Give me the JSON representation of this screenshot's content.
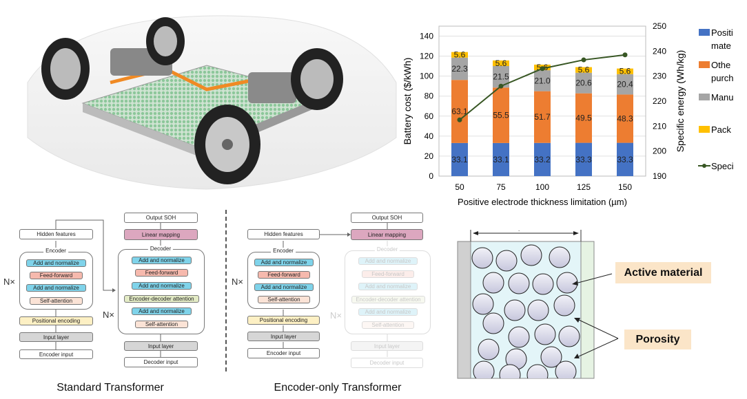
{
  "chart_data": {
    "type": "bar",
    "stacked": true,
    "categories": [
      "50",
      "75",
      "100",
      "125",
      "150"
    ],
    "series": [
      {
        "name": "Positi mate",
        "legend_lines": [
          "Positi",
          "mate"
        ],
        "color": "#4472c4",
        "values": [
          33.1,
          33.1,
          33.2,
          33.3,
          33.3
        ]
      },
      {
        "name": "Othe purch",
        "legend_lines": [
          "Othe",
          "purch"
        ],
        "color": "#ed7d31",
        "values": [
          63.1,
          55.5,
          51.7,
          49.5,
          48.3
        ]
      },
      {
        "name": "Manu",
        "legend_lines": [
          "Manu"
        ],
        "color": "#a5a5a5",
        "values": [
          22.3,
          21.5,
          21.0,
          20.6,
          20.4
        ]
      },
      {
        "name": "Pack",
        "legend_lines": [
          "Pack"
        ],
        "color": "#ffc000",
        "values": [
          5.6,
          5.6,
          5.6,
          5.6,
          5.6
        ]
      }
    ],
    "line_series": {
      "name": "Speci",
      "legend_lines": [
        "Speci"
      ],
      "color": "#375623",
      "axis": "right",
      "values": [
        212.5,
        226,
        233,
        236.5,
        238.5
      ]
    },
    "xlabel": "Positive electrode thickness limitation (µm)",
    "ylabel": "Battery cost ($/kWh)",
    "y2label": "Specific energy (Wh/kg)",
    "ylim": [
      0,
      150
    ],
    "yticks": [
      0,
      20,
      40,
      60,
      80,
      100,
      120,
      140
    ],
    "y2lim": [
      190,
      250
    ],
    "y2ticks": [
      190,
      200,
      210,
      220,
      230,
      240,
      250
    ],
    "grid": true,
    "legend_position": "right"
  },
  "standard": {
    "caption": "Standard Transformer",
    "hidden": "Hidden features",
    "encoder_label": "Encoder",
    "decoder_label": "Decoder",
    "nx": "N×",
    "add_norm": "Add and normalize",
    "feed_forward": "Feed-forward",
    "self_attention": "Self-attention",
    "enc_dec_attention": "Encoder-decoder attention",
    "positional": "Positional encoding",
    "input_layer": "Input layer",
    "encoder_input": "Encoder input",
    "decoder_input": "Decoder input",
    "output": "Output SOH",
    "linear": "Linear mapping"
  },
  "encoder_only": {
    "caption": "Encoder-only Transformer"
  },
  "electrode": {
    "active": "Active material",
    "porosity": "Porosity",
    "width_mark": "."
  }
}
